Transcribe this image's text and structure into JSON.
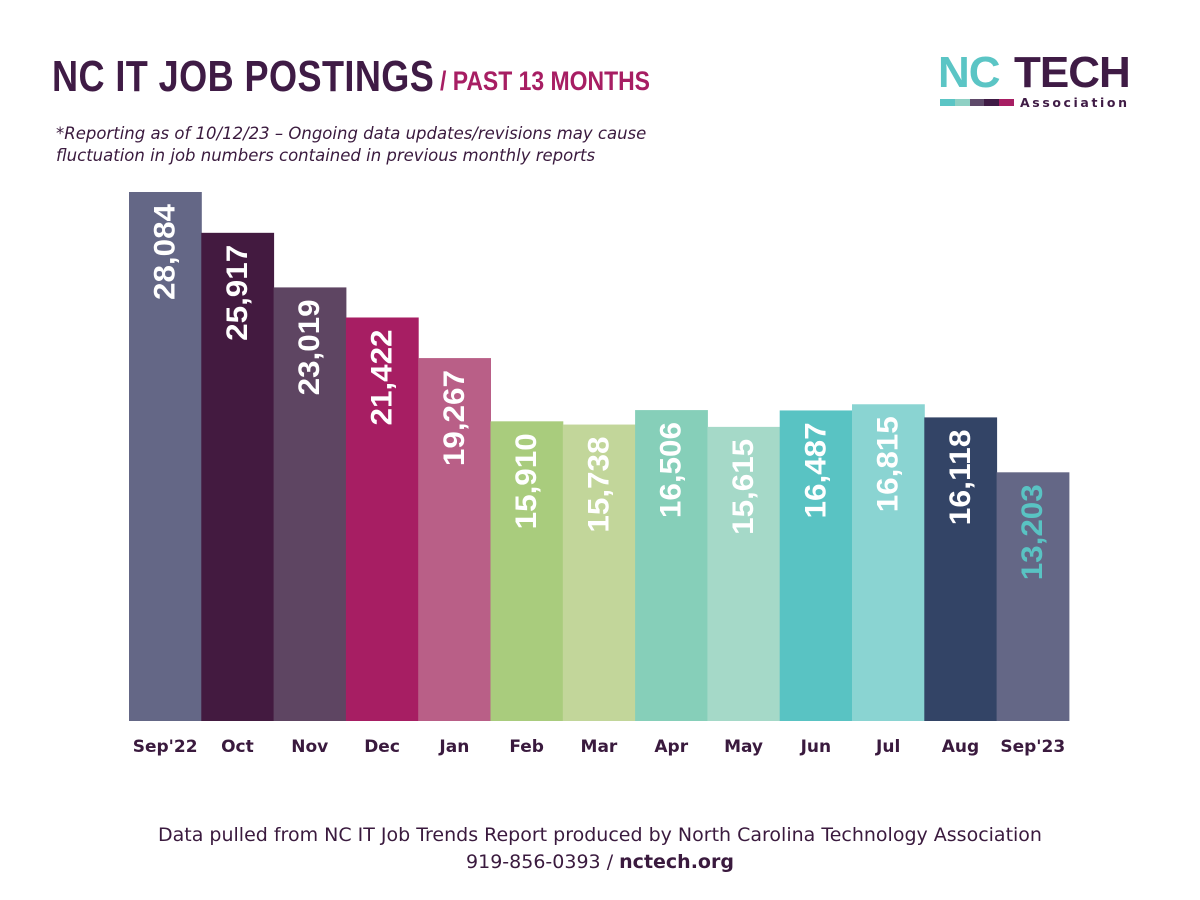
{
  "header": {
    "title": "NC IT JOB POSTINGS",
    "subtitle": "/ PAST 13 MONTHS",
    "note_line1": "*Reporting as of 10/12/23 – Ongoing data updates/revisions may cause",
    "note_line2": "fluctuation in job numbers contained in previous monthly reports"
  },
  "logo": {
    "nc": "NC",
    "tech": "TECH",
    "association": "Association",
    "bar_colors": [
      "#5bc5c5",
      "#8fd0c4",
      "#5e4a6a",
      "#3f1b45",
      "#a71e63"
    ]
  },
  "chart_data": {
    "type": "bar",
    "categories": [
      "Sep'22",
      "Oct",
      "Nov",
      "Dec",
      "Jan",
      "Feb",
      "Mar",
      "Apr",
      "May",
      "Jun",
      "Jul",
      "Aug",
      "Sep'23"
    ],
    "values": [
      28084,
      25917,
      23019,
      21422,
      19267,
      15910,
      15738,
      16506,
      15615,
      16487,
      16815,
      16118,
      13203
    ],
    "labels": [
      "28,084",
      "25,917",
      "23,019",
      "21,422",
      "19,267",
      "15,910",
      "15,738",
      "16,506",
      "15,615",
      "16,487",
      "16,815",
      "16,118",
      "13,203"
    ],
    "bar_colors": [
      "#646786",
      "#431a40",
      "#5e4562",
      "#a71e63",
      "#b95f87",
      "#a9cc7d",
      "#c2d69a",
      "#86cfb9",
      "#a5d9c8",
      "#59c3c3",
      "#8ad4d2",
      "#334466",
      "#646786"
    ],
    "label_colors": [
      "#ffffff",
      "#ffffff",
      "#ffffff",
      "#ffffff",
      "#ffffff",
      "#ffffff",
      "#ffffff",
      "#ffffff",
      "#ffffff",
      "#ffffff",
      "#ffffff",
      "#ffffff",
      "#59c3c3"
    ],
    "ylim": [
      0,
      28084
    ],
    "grid": false,
    "legend": "none"
  },
  "footer": {
    "line1": "Data pulled from NC IT Job Trends Report produced by North Carolina Technology Association",
    "phone": "919-856-0393",
    "separator": "/",
    "url": "nctech.org"
  }
}
